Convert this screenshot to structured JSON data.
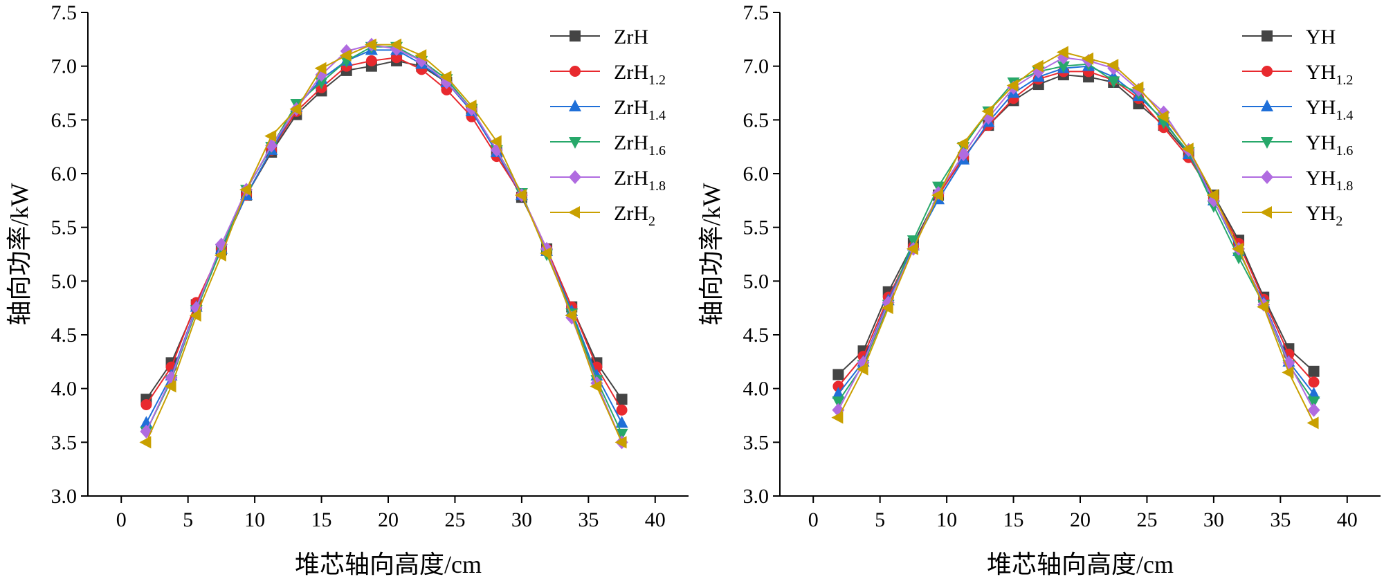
{
  "chart_data": [
    {
      "type": "line",
      "xlabel": "堆芯轴向高度/cm",
      "ylabel": "轴向功率/kW",
      "xlim": [
        -2.5,
        42.5
      ],
      "ylim": [
        3.0,
        7.5
      ],
      "xticks": [
        0,
        5,
        10,
        15,
        20,
        25,
        30,
        35,
        40
      ],
      "yticks": [
        3.0,
        3.5,
        4.0,
        4.5,
        5.0,
        5.5,
        6.0,
        6.5,
        7.0,
        7.5
      ],
      "grid": false,
      "legend": "top-right",
      "x": [
        1.875,
        3.75,
        5.625,
        7.5,
        9.375,
        11.25,
        13.125,
        15,
        16.875,
        18.75,
        20.625,
        22.5,
        24.375,
        26.25,
        28.125,
        30,
        31.875,
        33.75,
        35.625,
        37.5
      ],
      "series": [
        {
          "name": "ZrH",
          "sub": "",
          "color": "#444444",
          "marker": "square",
          "values": [
            3.9,
            4.24,
            4.78,
            5.29,
            5.8,
            6.2,
            6.55,
            6.77,
            6.96,
            7.0,
            7.05,
            7.0,
            6.85,
            6.6,
            6.2,
            5.78,
            5.3,
            4.76,
            4.24,
            3.9
          ]
        },
        {
          "name": "ZrH",
          "sub": "1.2",
          "color": "#e8292e",
          "marker": "circle",
          "values": [
            3.85,
            4.2,
            4.8,
            5.3,
            5.8,
            6.22,
            6.58,
            6.8,
            7.0,
            7.05,
            7.08,
            6.97,
            6.78,
            6.53,
            6.16,
            5.8,
            5.3,
            4.76,
            4.2,
            3.8
          ]
        },
        {
          "name": "ZrH",
          "sub": "1.4",
          "color": "#1f6fd8",
          "marker": "triangle-up",
          "values": [
            3.68,
            4.12,
            4.76,
            5.3,
            5.8,
            6.22,
            6.62,
            6.88,
            7.05,
            7.15,
            7.15,
            7.02,
            6.85,
            6.58,
            6.2,
            5.8,
            5.28,
            4.72,
            4.12,
            3.68
          ]
        },
        {
          "name": "ZrH",
          "sub": "1.6",
          "color": "#27a86a",
          "marker": "triangle-down",
          "values": [
            3.6,
            4.08,
            4.73,
            5.3,
            5.85,
            6.25,
            6.65,
            6.85,
            7.05,
            7.18,
            7.18,
            7.05,
            6.88,
            6.6,
            6.22,
            5.82,
            5.25,
            4.7,
            4.08,
            3.58
          ]
        },
        {
          "name": "ZrH",
          "sub": "1.8",
          "color": "#b06be0",
          "marker": "diamond",
          "values": [
            3.6,
            4.1,
            4.75,
            5.34,
            5.85,
            6.26,
            6.6,
            6.92,
            7.14,
            7.2,
            7.16,
            7.05,
            6.85,
            6.6,
            6.22,
            5.8,
            5.3,
            4.66,
            4.05,
            3.5
          ]
        },
        {
          "name": "ZrH",
          "sub": "2",
          "color": "#c9a000",
          "marker": "triangle-left",
          "values": [
            3.5,
            4.02,
            4.68,
            5.24,
            5.85,
            6.35,
            6.6,
            6.98,
            7.1,
            7.2,
            7.2,
            7.1,
            6.9,
            6.63,
            6.3,
            5.8,
            5.26,
            4.68,
            4.02,
            3.5
          ]
        }
      ]
    },
    {
      "type": "line",
      "xlabel": "堆芯轴向高度/cm",
      "ylabel": "轴向功率/kW",
      "xlim": [
        -2.5,
        42.5
      ],
      "ylim": [
        3.0,
        7.5
      ],
      "xticks": [
        0,
        5,
        10,
        15,
        20,
        25,
        30,
        35,
        40
      ],
      "yticks": [
        3.0,
        3.5,
        4.0,
        4.5,
        5.0,
        5.5,
        6.0,
        6.5,
        7.0,
        7.5
      ],
      "grid": false,
      "legend": "top-right",
      "x": [
        1.875,
        3.75,
        5.625,
        7.5,
        9.375,
        11.25,
        13.125,
        15,
        16.875,
        18.75,
        20.625,
        22.5,
        24.375,
        26.25,
        28.125,
        30,
        31.875,
        33.75,
        35.625,
        37.5
      ],
      "series": [
        {
          "name": "YH",
          "sub": "",
          "color": "#444444",
          "marker": "square",
          "values": [
            4.13,
            4.35,
            4.9,
            5.35,
            5.8,
            6.15,
            6.45,
            6.68,
            6.83,
            6.92,
            6.9,
            6.85,
            6.65,
            6.45,
            6.18,
            5.8,
            5.38,
            4.85,
            4.37,
            4.16
          ]
        },
        {
          "name": "YH",
          "sub": "1.2",
          "color": "#e8292e",
          "marker": "circle",
          "values": [
            4.02,
            4.3,
            4.85,
            5.32,
            5.8,
            6.15,
            6.45,
            6.7,
            6.88,
            6.95,
            6.95,
            6.87,
            6.7,
            6.43,
            6.15,
            5.78,
            5.35,
            4.83,
            4.32,
            4.06
          ]
        },
        {
          "name": "YH",
          "sub": "1.4",
          "color": "#1f6fd8",
          "marker": "triangle-up",
          "values": [
            3.95,
            4.25,
            4.82,
            5.33,
            5.76,
            6.13,
            6.48,
            6.75,
            6.9,
            6.98,
            7.0,
            6.9,
            6.72,
            6.5,
            6.18,
            5.75,
            5.28,
            4.8,
            4.25,
            3.95
          ]
        },
        {
          "name": "YH",
          "sub": "1.6",
          "color": "#27a86a",
          "marker": "triangle-down",
          "values": [
            3.88,
            4.22,
            4.78,
            5.38,
            5.88,
            6.25,
            6.58,
            6.85,
            6.95,
            7.0,
            7.02,
            6.86,
            6.75,
            6.48,
            6.2,
            5.7,
            5.22,
            4.78,
            4.22,
            3.88
          ]
        },
        {
          "name": "YH",
          "sub": "1.8",
          "color": "#b06be0",
          "marker": "diamond",
          "values": [
            3.8,
            4.24,
            4.8,
            5.3,
            5.82,
            6.18,
            6.52,
            6.8,
            6.95,
            7.08,
            7.05,
            6.98,
            6.78,
            6.57,
            6.22,
            5.75,
            5.3,
            4.78,
            4.24,
            3.8
          ]
        },
        {
          "name": "YH",
          "sub": "2",
          "color": "#c9a000",
          "marker": "triangle-left",
          "values": [
            3.73,
            4.18,
            4.75,
            5.3,
            5.8,
            6.28,
            6.58,
            6.82,
            7.0,
            7.13,
            7.07,
            7.01,
            6.8,
            6.53,
            6.23,
            5.8,
            5.3,
            4.76,
            4.15,
            3.68
          ]
        }
      ]
    }
  ]
}
